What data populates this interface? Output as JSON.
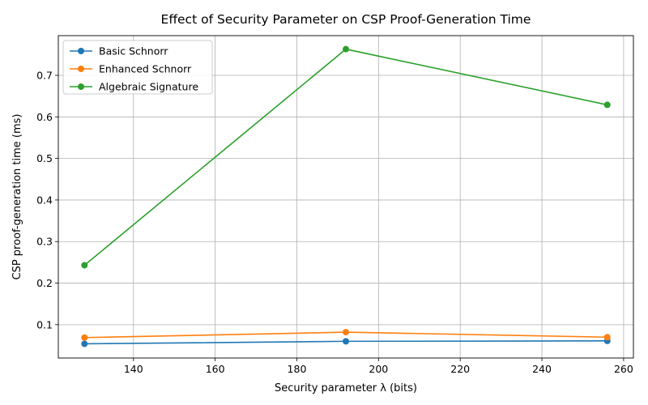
{
  "chart_data": {
    "type": "line",
    "title": "Effect of Security Parameter on CSP Proof-Generation Time",
    "xlabel": "Security parameter λ (bits)",
    "ylabel": "CSP proof-generation time (ms)",
    "x": [
      128,
      192,
      256
    ],
    "xlim": [
      121.6,
      262.4
    ],
    "ylim": [
      0.0198,
      0.7955
    ],
    "xticks": [
      140,
      160,
      180,
      200,
      220,
      240,
      260
    ],
    "yticks": [
      0.1,
      0.2,
      0.3,
      0.4,
      0.5,
      0.6,
      0.7
    ],
    "grid": true,
    "legend_position": "top-left",
    "series": [
      {
        "name": "Basic Schnorr",
        "color": "#1f77b4",
        "values": [
          0.054,
          0.06,
          0.061
        ]
      },
      {
        "name": "Enhanced Schnorr",
        "color": "#ff7f0e",
        "values": [
          0.069,
          0.082,
          0.07
        ]
      },
      {
        "name": "Algebraic Signature",
        "color": "#2ca02c",
        "values": [
          0.243,
          0.763,
          0.629
        ]
      }
    ]
  }
}
